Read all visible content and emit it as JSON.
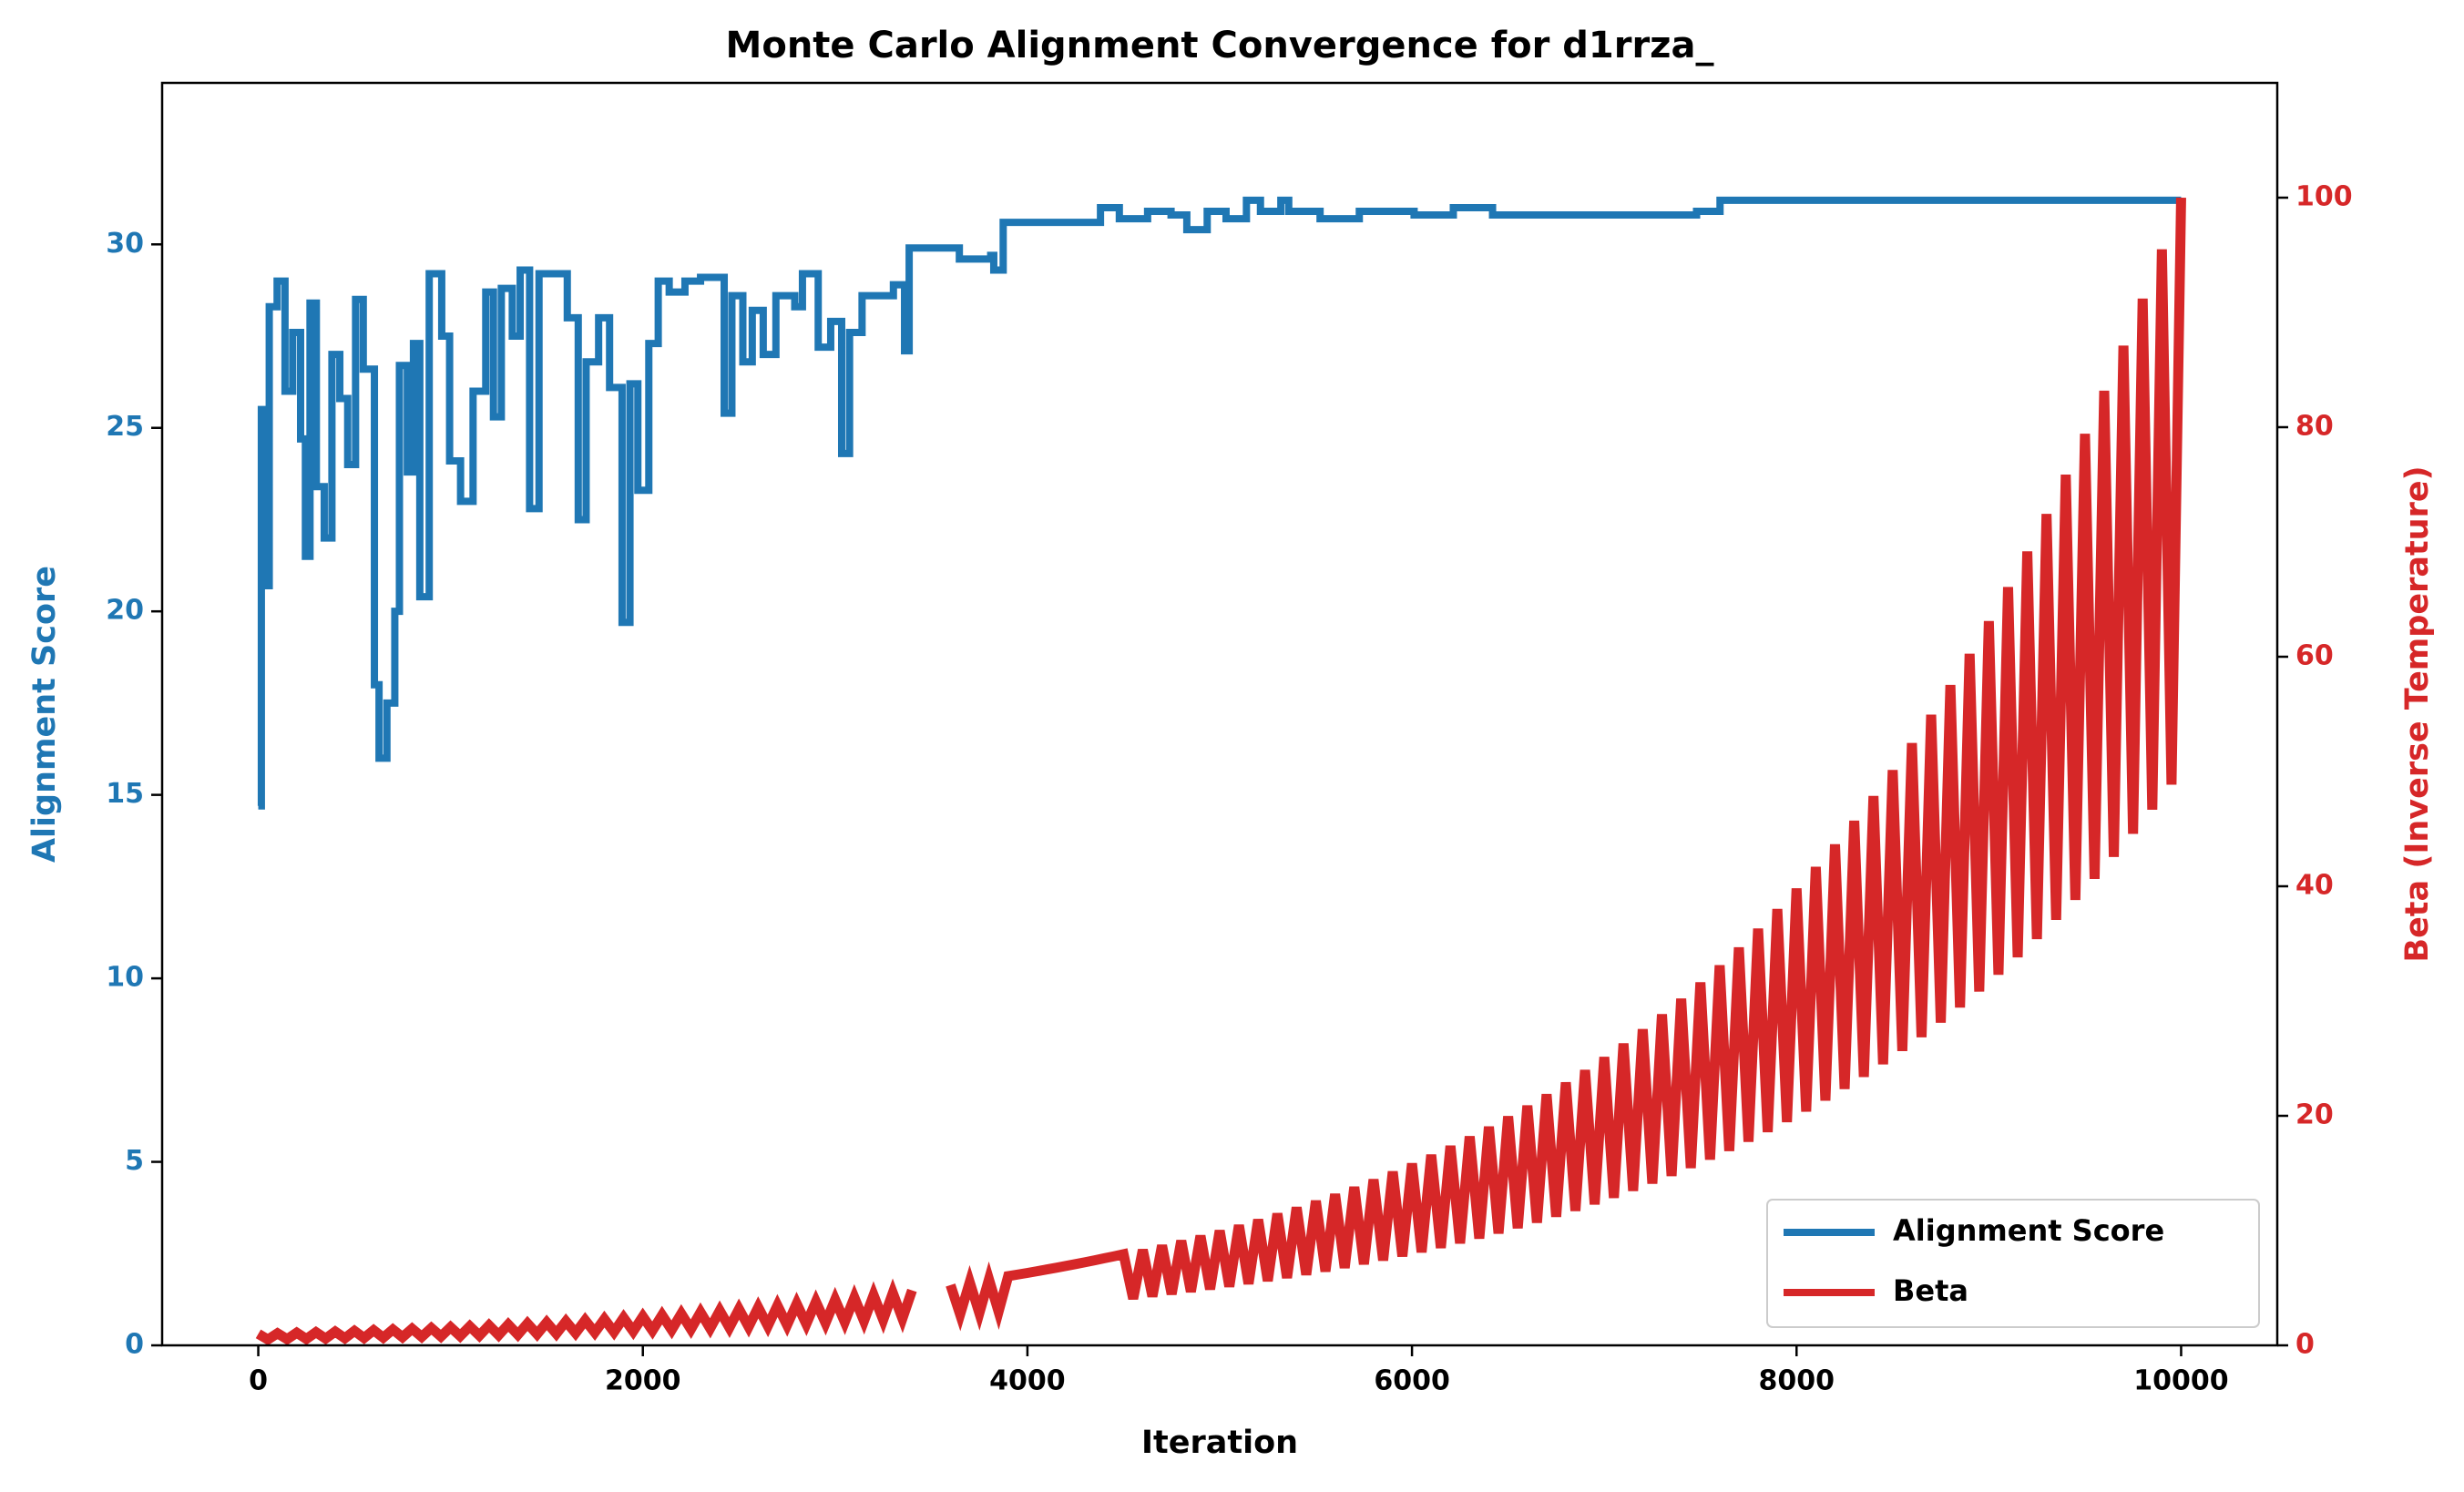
{
  "chart_data": {
    "type": "line",
    "title": "Monte Carlo Alignment Convergence for d1rrza_",
    "xlabel": "Iteration",
    "ylabel": "Alignment Score",
    "y2label": "Beta (Inverse Temperature)",
    "xlim": [
      -500,
      10500
    ],
    "xticks": [
      0,
      2000,
      4000,
      6000,
      8000,
      10000
    ],
    "ylim": [
      0,
      34.4
    ],
    "yticks": [
      0,
      5,
      10,
      15,
      20,
      25,
      30
    ],
    "y2lim": [
      0,
      110
    ],
    "y2ticks": [
      0,
      20,
      40,
      60,
      80,
      100
    ],
    "legend": "lower right",
    "grid": false,
    "series": [
      {
        "name": "Alignment Score",
        "color": "#1f77b4",
        "drawstyle": "steps-post",
        "x": [
          0,
          16,
          33,
          57,
          98,
          139,
          179,
          220,
          245,
          269,
          302,
          343,
          383,
          424,
          465,
          506,
          546,
          579,
          604,
          628,
          669,
          710,
          734,
          775,
          807,
          840,
          889,
          954,
          995,
          1052,
          1117,
          1183,
          1223,
          1264,
          1321,
          1362,
          1411,
          1460,
          1566,
          1607,
          1664,
          1705,
          1770,
          1827,
          1892,
          1933,
          1974,
          2031,
          2080,
          2137,
          2219,
          2300,
          2423,
          2463,
          2520,
          2569,
          2626,
          2692,
          2790,
          2830,
          2912,
          2977,
          3034,
          3075,
          3140,
          3238,
          3303,
          3361,
          3385,
          3564,
          3646,
          3809,
          3825,
          3874,
          4299,
          4380,
          4478,
          4625,
          4747,
          4829,
          4935,
          5033,
          5139,
          5212,
          5318,
          5359,
          5522,
          5726,
          6011,
          6215,
          6419,
          7316,
          7480,
          7602,
          10000
        ],
        "values": [
          14.7,
          25.5,
          20.7,
          28.3,
          29,
          26,
          27.6,
          24.7,
          21.5,
          28.4,
          23.4,
          22,
          27,
          25.8,
          24,
          28.5,
          26.6,
          26.6,
          18,
          16,
          17.5,
          20,
          26.7,
          23.8,
          27.3,
          20.4,
          29.2,
          27.5,
          24.1,
          23,
          26,
          28.7,
          25.3,
          28.8,
          27.5,
          29.3,
          22.8,
          29.2,
          29.2,
          28,
          22.5,
          26.8,
          28,
          26.1,
          19.7,
          26.2,
          23.3,
          27.3,
          29,
          28.7,
          29,
          29.1,
          25.4,
          28.6,
          26.8,
          28.2,
          27,
          28.6,
          28.3,
          29.2,
          27.2,
          27.9,
          24.3,
          27.6,
          28.6,
          28.6,
          28.9,
          27.1,
          29.9,
          29.9,
          29.6,
          29.7,
          29.3,
          30.6,
          30.6,
          31,
          30.7,
          30.9,
          30.8,
          30.4,
          30.9,
          30.7,
          31.2,
          30.9,
          31.2,
          30.9,
          30.7,
          30.9,
          30.8,
          31,
          30.8,
          30.8,
          30.9,
          31.2,
          31.2
        ]
      },
      {
        "name": "Beta",
        "color": "#d62728",
        "axis": "y2",
        "drawstyle": "default",
        "x": [
          0,
          50,
          100,
          150,
          200,
          250,
          300,
          350,
          400,
          450,
          500,
          550,
          600,
          650,
          700,
          750,
          800,
          850,
          900,
          950,
          1000,
          1050,
          1100,
          1150,
          1200,
          1250,
          1300,
          1350,
          1400,
          1450,
          1500,
          1550,
          1600,
          1650,
          1700,
          1750,
          1800,
          1850,
          1900,
          1950,
          2000,
          2050,
          2100,
          2150,
          2200,
          2250,
          2300,
          2350,
          2400,
          2450,
          2500,
          2550,
          2600,
          2650,
          2700,
          2750,
          2800,
          2850,
          2900,
          2950,
          3000,
          3050,
          3100,
          3150,
          3200,
          3250,
          3300,
          3350,
          3400,
          3450,
          3500,
          3550,
          3600,
          3650,
          3700,
          3750,
          3800,
          3850,
          3900,
          3950,
          4000,
          4050,
          4100,
          4150,
          4200,
          4250,
          4300,
          4350,
          4400,
          4450,
          4500,
          4550,
          4600,
          4650,
          4700,
          4750,
          4800,
          4850,
          4900,
          4950,
          5000,
          5050,
          5100,
          5150,
          5200,
          5250,
          5300,
          5350,
          5400,
          5450,
          5500,
          5550,
          5600,
          5650,
          5700,
          5750,
          5800,
          5850,
          5900,
          5950,
          6000,
          6050,
          6100,
          6150,
          6200,
          6250,
          6300,
          6350,
          6400,
          6450,
          6500,
          6550,
          6600,
          6650,
          6700,
          6750,
          6800,
          6850,
          6900,
          6950,
          7000,
          7050,
          7100,
          7150,
          7200,
          7250,
          7300,
          7350,
          7400,
          7450,
          7500,
          7550,
          7600,
          7650,
          7700,
          7750,
          7800,
          7850,
          7900,
          7950,
          8000,
          8050,
          8100,
          8150,
          8200,
          8250,
          8300,
          8350,
          8400,
          8450,
          8500,
          8550,
          8600,
          8650,
          8700,
          8750,
          8800,
          8850,
          8900,
          8950,
          9000,
          9050,
          9100,
          9150,
          9200,
          9250,
          9300,
          9350,
          9400,
          9450,
          9500,
          9550,
          9600,
          9650,
          9700,
          9750,
          9800,
          9850,
          9900,
          9950,
          10000
        ],
        "values": [
          1.0,
          0.51,
          1.05,
          0.54,
          1.1,
          0.56,
          1.15,
          0.59,
          1.2,
          0.62,
          1.26,
          0.64,
          1.32,
          0.67,
          1.38,
          0.71,
          1.45,
          0.74,
          1.51,
          0.77,
          1.58,
          0.81,
          1.66,
          0.85,
          1.74,
          0.89,
          1.82,
          0.93,
          1.91,
          0.98,
          2.0,
          1.02,
          2.09,
          1.07,
          2.19,
          1.12,
          2.29,
          1.17,
          2.4,
          1.23,
          2.51,
          1.29,
          2.63,
          1.35,
          2.75,
          1.41,
          2.88,
          1.48,
          3.02,
          1.55,
          3.16,
          1.62,
          3.31,
          1.69,
          3.47,
          1.77,
          3.63,
          1.86,
          3.8,
          1.95,
          3.98,
          2.04,
          4.17,
          2.13,
          4.37,
          2.23,
          4.57,
          2.34,
          4.79,
          null,
          null,
          null,
          5.25,
          2.69,
          5.5,
          2.81,
          5.75,
          2.94,
          6.03,
          6.17,
          6.31,
          6.46,
          6.61,
          6.76,
          6.92,
          7.08,
          7.24,
          7.41,
          7.59,
          7.76,
          7.94,
          4.06,
          8.32,
          4.26,
          8.71,
          4.46,
          9.12,
          4.67,
          9.55,
          4.89,
          10.0,
          5.12,
          10.47,
          5.36,
          10.96,
          5.61,
          11.48,
          5.88,
          12.02,
          6.15,
          12.59,
          6.44,
          13.18,
          6.75,
          13.8,
          7.07,
          14.45,
          7.4,
          15.14,
          7.75,
          15.85,
          8.11,
          16.6,
          8.49,
          17.38,
          8.89,
          18.2,
          9.31,
          19.05,
          9.75,
          19.95,
          10.21,
          20.89,
          10.69,
          21.88,
          11.2,
          22.91,
          11.72,
          23.99,
          12.28,
          25.12,
          12.85,
          26.3,
          13.46,
          27.54,
          14.09,
          28.84,
          14.76,
          30.2,
          15.45,
          31.62,
          16.18,
          33.11,
          16.94,
          34.67,
          17.74,
          36.31,
          18.58,
          38.02,
          19.45,
          39.81,
          20.37,
          41.69,
          21.33,
          43.65,
          22.34,
          45.71,
          23.39,
          47.86,
          24.49,
          50.12,
          25.65,
          52.48,
          26.85,
          54.95,
          28.12,
          57.54,
          29.44,
          60.26,
          30.83,
          63.1,
          32.29,
          66.07,
          33.81,
          69.18,
          35.4,
          72.44,
          37.07,
          75.86,
          38.81,
          79.43,
          40.64,
          83.18,
          42.56,
          87.1,
          44.57,
          91.2,
          46.67,
          95.5,
          48.86,
          100.0
        ]
      }
    ]
  }
}
